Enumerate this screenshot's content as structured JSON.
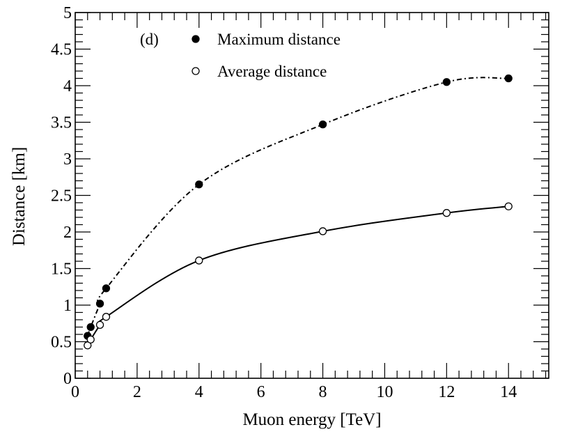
{
  "chart_data": {
    "type": "scatter",
    "title": "",
    "panel_label": "(d)",
    "xlabel": "Muon energy [TeV]",
    "ylabel": "Distance [km]",
    "xlim": [
      0,
      15.3
    ],
    "ylim": [
      0,
      5
    ],
    "x_major_ticks": [
      0,
      2,
      4,
      6,
      8,
      10,
      12,
      14
    ],
    "x_tick_labels": [
      "0",
      "2",
      "4",
      "6",
      "8",
      "10",
      "12",
      "14"
    ],
    "y_major_ticks": [
      0,
      0.5,
      1,
      1.5,
      2,
      2.5,
      3,
      3.5,
      4,
      4.5,
      5
    ],
    "y_tick_labels": [
      "0",
      "0.5",
      "1",
      "1.5",
      "2",
      "2.5",
      "3",
      "3.5",
      "4",
      "4.5",
      "5"
    ],
    "grid": false,
    "legend_position": "top-left",
    "series": [
      {
        "name": "Maximum distance",
        "marker": "filled-circle",
        "line_style": "dash-dot",
        "x": [
          0.4,
          0.5,
          0.8,
          1.0,
          4,
          8,
          12,
          14
        ],
        "values": [
          0.58,
          0.7,
          1.02,
          1.23,
          2.65,
          3.47,
          4.05,
          4.1
        ]
      },
      {
        "name": "Average distance",
        "marker": "open-circle",
        "line_style": "solid",
        "x": [
          0.4,
          0.5,
          0.8,
          1.0,
          4,
          8,
          12,
          14
        ],
        "values": [
          0.45,
          0.53,
          0.73,
          0.84,
          1.61,
          2.01,
          2.26,
          2.35
        ]
      }
    ]
  }
}
